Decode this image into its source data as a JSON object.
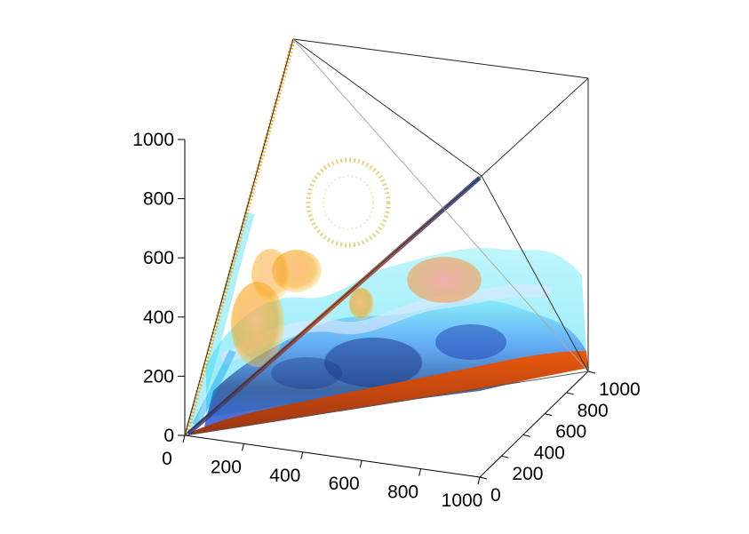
{
  "chart_data": {
    "type": "volume-isosurface-3d",
    "title": "",
    "xlabel": "",
    "ylabel": "",
    "zlabel": "",
    "grid": false,
    "legend": false,
    "axes": {
      "x": {
        "range": [
          0,
          1000
        ],
        "ticks": [
          0,
          200,
          400,
          600,
          800,
          1000
        ],
        "tick_labels": [
          "0",
          "200",
          "400",
          "600",
          "800",
          "1000"
        ]
      },
      "y": {
        "range": [
          0,
          1000
        ],
        "ticks": [
          0,
          200,
          400,
          600,
          800,
          1000
        ],
        "tick_labels": [
          "0",
          "200",
          "400",
          "600",
          "800",
          "1000"
        ]
      },
      "z": {
        "range": [
          0,
          1000
        ],
        "ticks": [
          0,
          200,
          400,
          600,
          800,
          1000
        ],
        "tick_labels": [
          "0",
          "200",
          "400",
          "600",
          "800",
          "1000"
        ]
      }
    },
    "domain": "tetrahedron with vertices (0,0,0), (1000,0,0), (0,1000,0), (0,0,1000)",
    "layers": [
      {
        "name": "bottom-layer",
        "color": "#c2410c",
        "z_range": [
          0,
          80
        ]
      },
      {
        "name": "deep-blue-band",
        "color": "#1e3a8a",
        "z_range": [
          80,
          300
        ]
      },
      {
        "name": "cyan-wavy-surface",
        "color": "#22d3ee",
        "z_range": [
          300,
          500
        ]
      }
    ],
    "blobs": [
      {
        "name": "orange-blob-1",
        "color": "#f59e0b",
        "center": [
          150,
          150,
          420
        ]
      },
      {
        "name": "orange-blob-2",
        "color": "#f59e0b",
        "center": [
          200,
          100,
          550
        ]
      },
      {
        "name": "orange-blob-3",
        "color": "#f59e0b",
        "center": [
          250,
          300,
          420
        ]
      },
      {
        "name": "orange-blob-4",
        "color": "#fb923c",
        "center": [
          150,
          550,
          420
        ]
      },
      {
        "name": "ring-outline",
        "color": "#eab308",
        "center": [
          100,
          250,
          780
        ]
      }
    ]
  }
}
